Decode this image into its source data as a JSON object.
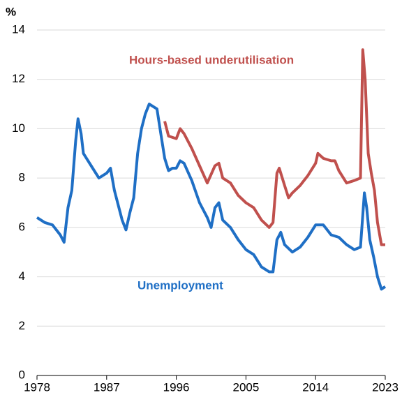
{
  "chart_data": {
    "type": "line",
    "ylabel": "%",
    "xlim": [
      1978,
      2023
    ],
    "xticks": [
      1978,
      1987,
      1996,
      2005,
      2014,
      2023
    ],
    "ylim": [
      0,
      14
    ],
    "yticks": [
      0,
      2,
      4,
      6,
      8,
      10,
      12,
      14
    ],
    "grid": true,
    "series": [
      {
        "name": "Unemployment",
        "color": "#1f6fc5",
        "x": [
          1978,
          1979,
          1980,
          1981,
          1981.5,
          1982,
          1982.5,
          1983,
          1983.3,
          1983.7,
          1984,
          1985,
          1986,
          1987,
          1987.5,
          1988,
          1989,
          1989.5,
          1990,
          1990.5,
          1991,
          1991.5,
          1992,
          1992.5,
          1993,
          1993.5,
          1994,
          1994.5,
          1995,
          1995.5,
          1996,
          1996.5,
          1997,
          1998,
          1999,
          2000,
          2000.5,
          2001,
          2001.5,
          2002,
          2003,
          2004,
          2005,
          2006,
          2007,
          2008,
          2008.5,
          2009,
          2009.5,
          2010,
          2011,
          2012,
          2013,
          2014,
          2015,
          2016,
          2017,
          2018,
          2019,
          2019.8,
          2020.3,
          2020.6,
          2021,
          2021.5,
          2022,
          2022.5,
          2023
        ],
        "values": [
          6.4,
          6.2,
          6.1,
          5.7,
          5.4,
          6.8,
          7.5,
          9.5,
          10.4,
          9.8,
          9.0,
          8.5,
          8.0,
          8.2,
          8.4,
          7.5,
          6.3,
          5.9,
          6.6,
          7.2,
          9.0,
          10.0,
          10.6,
          11.0,
          10.9,
          10.8,
          9.8,
          8.8,
          8.3,
          8.4,
          8.4,
          8.7,
          8.6,
          7.9,
          7.0,
          6.4,
          6.0,
          6.8,
          7.0,
          6.3,
          6.0,
          5.5,
          5.1,
          4.9,
          4.4,
          4.2,
          4.2,
          5.5,
          5.8,
          5.3,
          5.0,
          5.2,
          5.6,
          6.1,
          6.1,
          5.7,
          5.6,
          5.3,
          5.1,
          5.2,
          7.4,
          6.8,
          5.5,
          4.8,
          4.0,
          3.5,
          3.6
        ]
      },
      {
        "name": "Hours-based underutilisation",
        "color": "#c0504d",
        "x": [
          1994.5,
          1995,
          1996,
          1996.5,
          1997,
          1998,
          1999,
          2000,
          2001,
          2001.5,
          2002,
          2003,
          2004,
          2005,
          2006,
          2007,
          2008,
          2008.5,
          2009,
          2009.3,
          2010,
          2010.5,
          2011,
          2012,
          2013,
          2014,
          2014.3,
          2015,
          2016,
          2016.5,
          2017,
          2018,
          2019,
          2019.8,
          2020.1,
          2020.4,
          2020.8,
          2021.2,
          2021.6,
          2022,
          2022.5,
          2023
        ],
        "values": [
          10.3,
          9.7,
          9.6,
          10.0,
          9.8,
          9.2,
          8.5,
          7.8,
          8.5,
          8.6,
          8.0,
          7.8,
          7.3,
          7.0,
          6.8,
          6.3,
          6.0,
          6.2,
          8.2,
          8.4,
          7.7,
          7.2,
          7.4,
          7.7,
          8.1,
          8.6,
          9.0,
          8.8,
          8.7,
          8.7,
          8.3,
          7.8,
          7.9,
          8.0,
          13.2,
          12.0,
          9.0,
          8.2,
          7.5,
          6.2,
          5.3,
          5.3
        ]
      }
    ]
  }
}
